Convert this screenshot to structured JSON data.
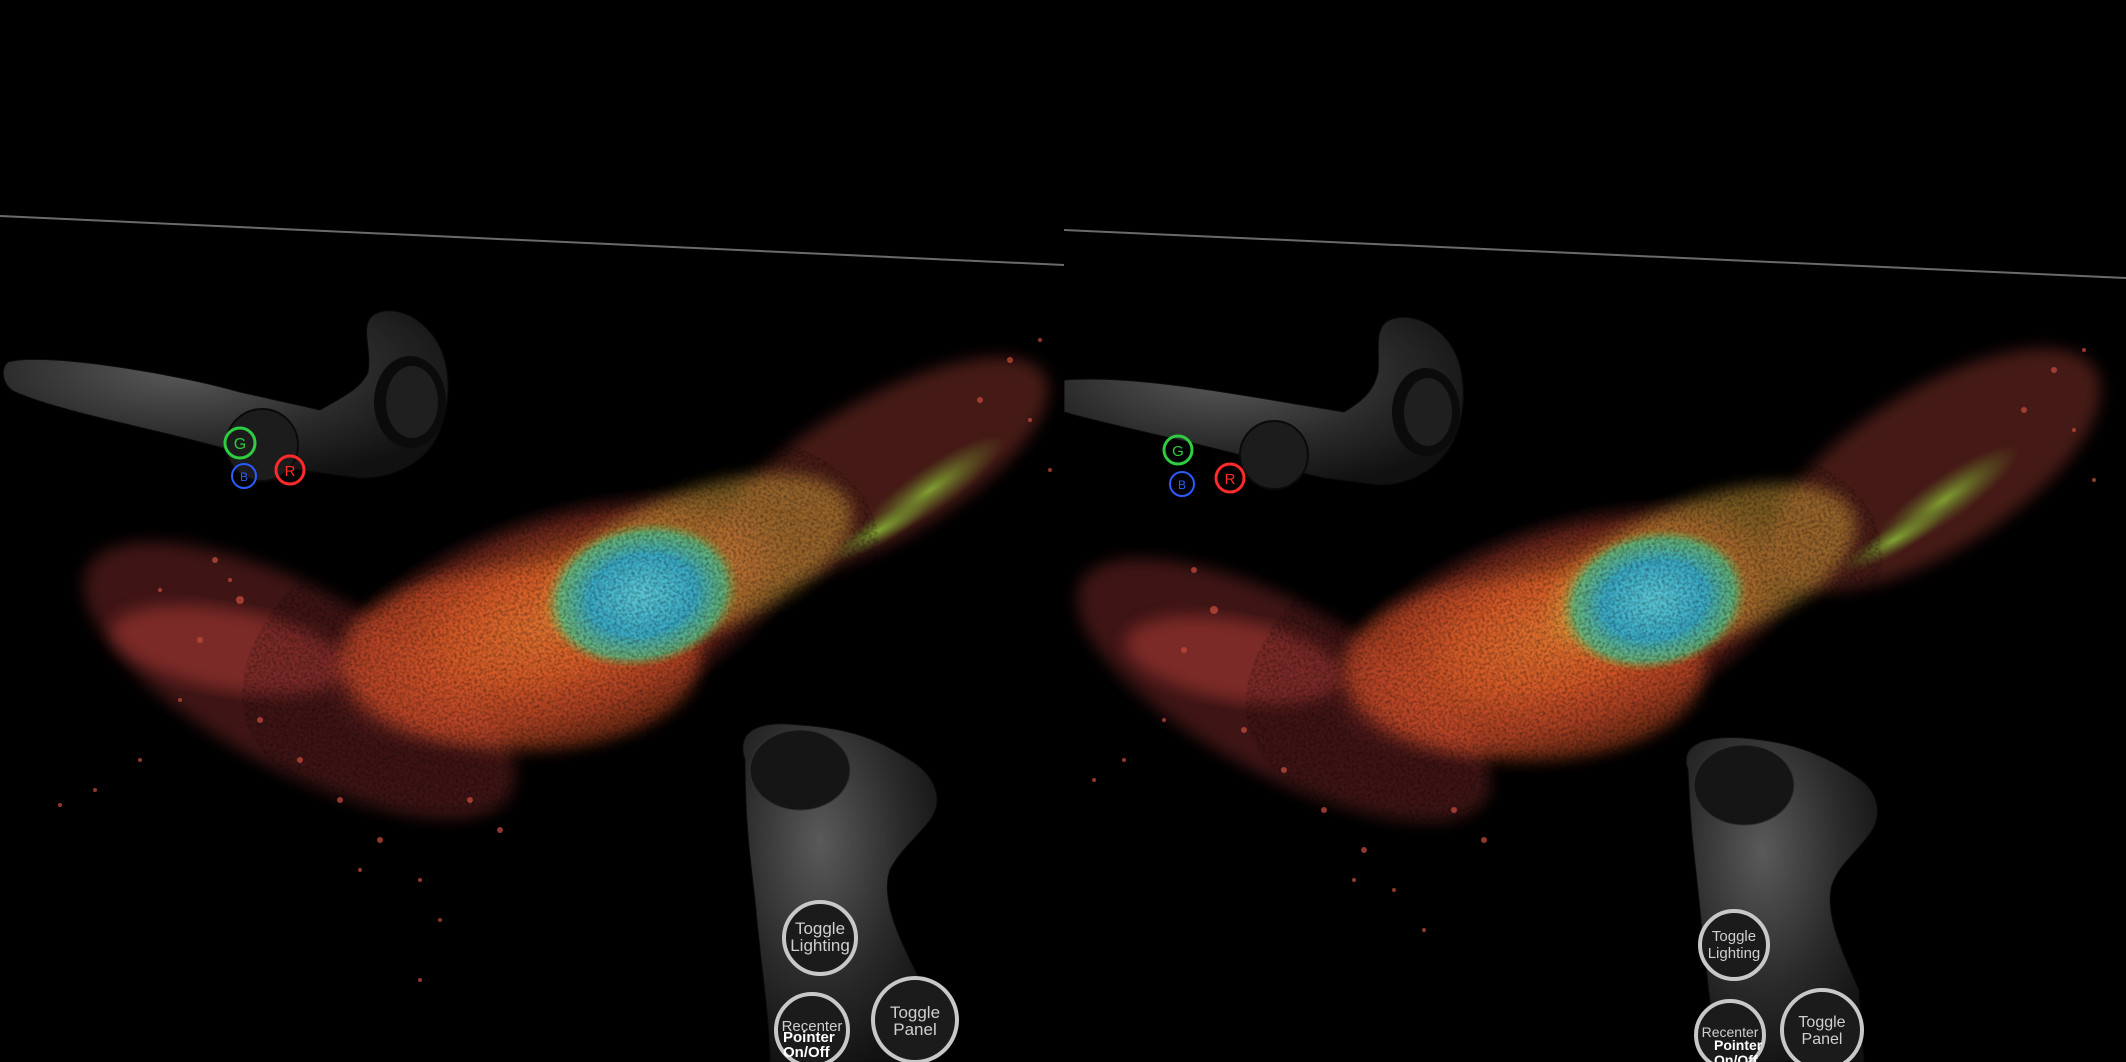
{
  "view": {
    "mode": "stereo VR view",
    "eyes": [
      "left",
      "right"
    ]
  },
  "tracked_controller": {
    "buttons": [
      {
        "glyph": "G",
        "color": "#2ecc40",
        "name": "green"
      },
      {
        "glyph": "R",
        "color": "#ff2a2a",
        "name": "red"
      },
      {
        "glyph": "B",
        "color": "#2a5cff",
        "name": "blue"
      }
    ]
  },
  "hand_menu": {
    "toggle_lighting": "Toggle\nLighting",
    "recenter": "Recenter",
    "pointer": "Pointer\nOn/Off",
    "toggle_panel": "Toggle\nPanel"
  },
  "cell_render": {
    "nucleus_color": "#3fb7c9",
    "cytoplasm_color": "#e8782a",
    "mito_color": "#d84a3a",
    "fibre_color": "#5aa04a"
  }
}
